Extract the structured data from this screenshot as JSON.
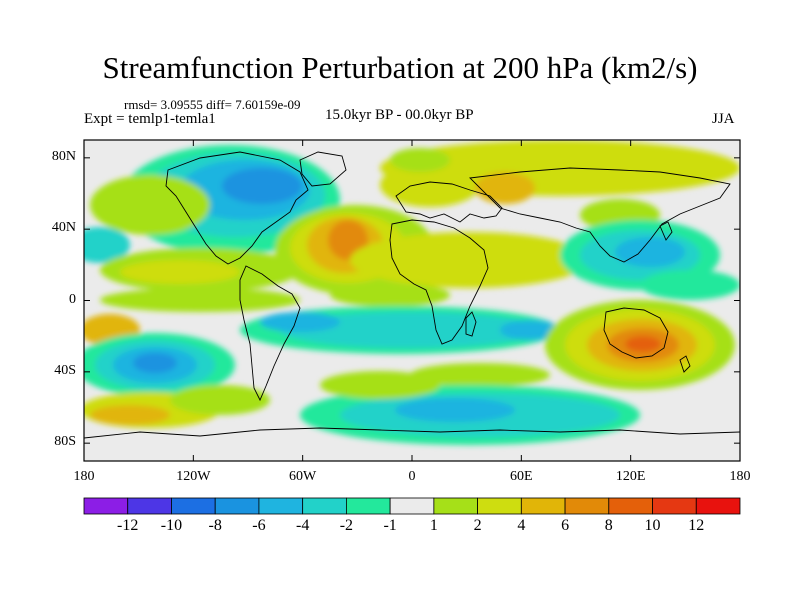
{
  "title": "Streamfunction Perturbation at 200 hPa (km2/s)",
  "stats": "rmsd= 3.09555 diff= 7.60159e-09",
  "expt": "Expt = temlp1-temla1",
  "period": "15.0kyr BP - 00.0kyr BP",
  "season": "JJA",
  "lat_labels": [
    "80N",
    "40N",
    "0",
    "40S",
    "80S"
  ],
  "lat_values": [
    80,
    40,
    0,
    -40,
    -80
  ],
  "lon_labels": [
    "180",
    "120W",
    "60W",
    "0",
    "60E",
    "120E",
    "180"
  ],
  "lon_values": [
    -180,
    -120,
    -60,
    0,
    60,
    120,
    180
  ],
  "map_extent": {
    "lon": [
      -180,
      180
    ],
    "lat": [
      -90,
      90
    ]
  },
  "colorbar": {
    "labels": [
      "-12",
      "-10",
      "-8",
      "-6",
      "-4",
      "-2",
      "-1",
      "1",
      "2",
      "4",
      "6",
      "8",
      "10",
      "12"
    ],
    "colors": [
      "#8c1ee6",
      "#4d36e6",
      "#1c6fe3",
      "#1a93e0",
      "#1fb4e0",
      "#22d2c9",
      "#23e89c",
      "#ebebeb",
      "#a6e018",
      "#cedd10",
      "#e1b508",
      "#e28a08",
      "#e4600a",
      "#e53812",
      "#e8120e"
    ]
  }
}
